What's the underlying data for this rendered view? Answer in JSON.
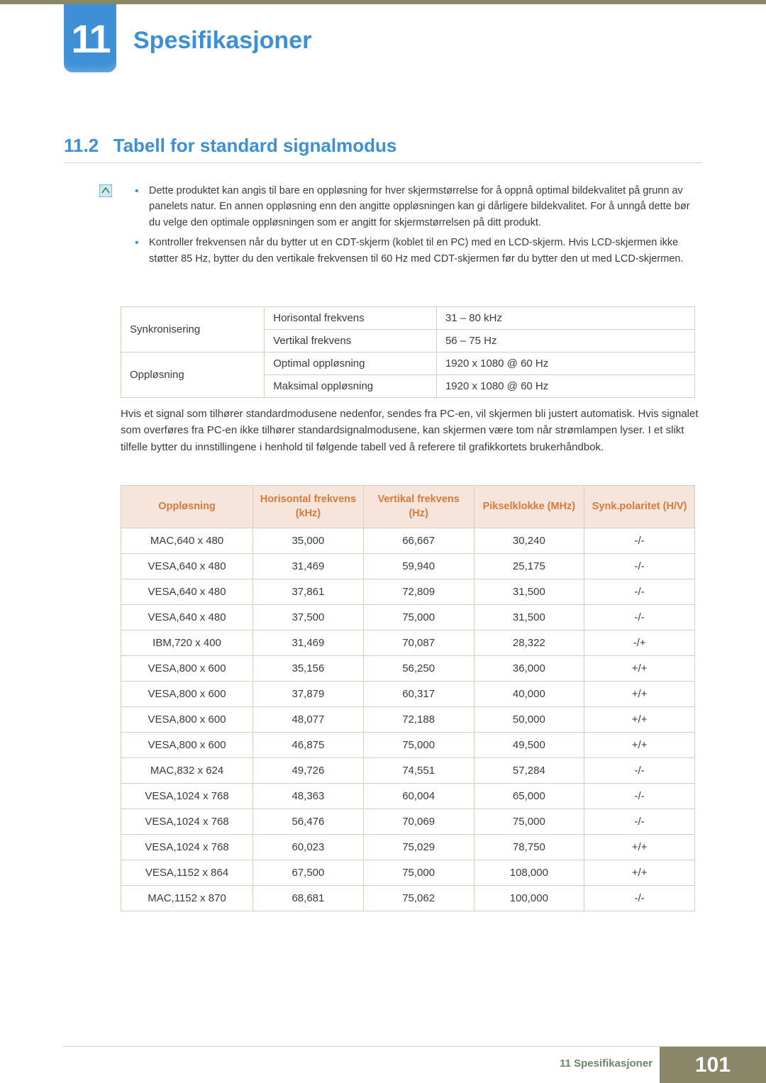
{
  "chapter": {
    "number": "11",
    "title": "Spesifikasjoner"
  },
  "section": {
    "number": "11.2",
    "title": "Tabell for standard signalmodus"
  },
  "colors": {
    "accent_blue": "#3d8fd6",
    "accent_olive": "#8a8668",
    "header_bg": "#f7e5db",
    "header_text": "#d87a3a",
    "border": "#d2cfc0",
    "body_text": "#3a3a3a",
    "footer_green": "#69876e"
  },
  "notes": [
    "Dette produktet kan angis til bare en oppløsning for hver skjermstørrelse for å oppnå optimal bildekvalitet på grunn av panelets natur. En annen oppløsning enn den angitte oppløsningen kan gi dårligere bildekvalitet. For å unngå dette bør du velge den optimale oppløsningen som er angitt for skjermstørrelsen på ditt produkt.",
    "Kontroller frekvensen når du bytter ut en CDT-skjerm (koblet til en PC) med en LCD-skjerm. Hvis LCD-skjermen ikke støtter 85 Hz, bytter du den vertikale frekvensen til 60 Hz med CDT-skjermen før du bytter den ut med LCD-skjermen."
  ],
  "spec_table": {
    "rows": [
      {
        "group": "Synkronisering",
        "label": "Horisontal frekvens",
        "value": "31 – 80 kHz"
      },
      {
        "group": "",
        "label": "Vertikal frekvens",
        "value": "56 – 75 Hz"
      },
      {
        "group": "Oppløsning",
        "label": "Optimal oppløsning",
        "value": "1920 x 1080 @ 60 Hz"
      },
      {
        "group": "",
        "label": "Maksimal oppløsning",
        "value": "1920 x 1080 @ 60 Hz"
      }
    ]
  },
  "paragraph": "Hvis et signal som tilhører standardmodusene nedenfor, sendes fra PC-en, vil skjermen bli justert automatisk. Hvis signalet som overføres fra PC-en ikke tilhører standardsignalmodusene, kan skjermen være tom når strømlampen lyser. I et slikt tilfelle bytter du innstillingene i henhold til følgende tabell ved å referere til grafikkortets brukerhåndbok.",
  "signal_table": {
    "columns": [
      "Oppløsning",
      "Horisontal frekvens (kHz)",
      "Vertikal frekvens (Hz)",
      "Pikselklokke (MHz)",
      "Synk.polaritet (H/V)"
    ],
    "rows": [
      [
        "MAC,640 x 480",
        "35,000",
        "66,667",
        "30,240",
        "-/-"
      ],
      [
        "VESA,640 x 480",
        "31,469",
        "59,940",
        "25,175",
        "-/-"
      ],
      [
        "VESA,640 x 480",
        "37,861",
        "72,809",
        "31,500",
        "-/-"
      ],
      [
        "VESA,640 x 480",
        "37,500",
        "75,000",
        "31,500",
        "-/-"
      ],
      [
        "IBM,720 x 400",
        "31,469",
        "70,087",
        "28,322",
        "-/+"
      ],
      [
        "VESA,800 x 600",
        "35,156",
        "56,250",
        "36,000",
        "+/+"
      ],
      [
        "VESA,800 x 600",
        "37,879",
        "60,317",
        "40,000",
        "+/+"
      ],
      [
        "VESA,800 x 600",
        "48,077",
        "72,188",
        "50,000",
        "+/+"
      ],
      [
        "VESA,800 x 600",
        "46,875",
        "75,000",
        "49,500",
        "+/+"
      ],
      [
        "MAC,832 x 624",
        "49,726",
        "74,551",
        "57,284",
        "-/-"
      ],
      [
        "VESA,1024 x 768",
        "48,363",
        "60,004",
        "65,000",
        "-/-"
      ],
      [
        "VESA,1024 x 768",
        "56,476",
        "70,069",
        "75,000",
        "-/-"
      ],
      [
        "VESA,1024 x 768",
        "60,023",
        "75,029",
        "78,750",
        "+/+"
      ],
      [
        "VESA,1152 x 864",
        "67,500",
        "75,000",
        "108,000",
        "+/+"
      ],
      [
        "MAC,1152 x 870",
        "68,681",
        "75,062",
        "100,000",
        "-/-"
      ]
    ]
  },
  "footer": {
    "label": "11 Spesifikasjoner",
    "page": "101"
  }
}
